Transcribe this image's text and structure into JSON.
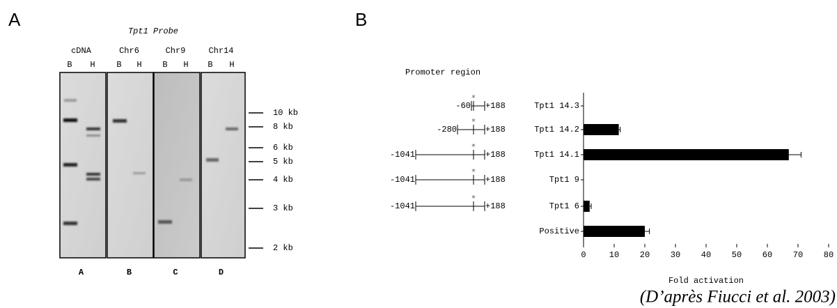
{
  "panel_a": {
    "label": "A",
    "probe": "Tpt1 Probe",
    "lanes": [
      {
        "name": "cDNA",
        "sub": [
          "B",
          "H"
        ],
        "letter": "A"
      },
      {
        "name": "Chr6",
        "sub": [
          "B",
          "H"
        ],
        "letter": "B"
      },
      {
        "name": "Chr9",
        "sub": [
          "B",
          "H"
        ],
        "letter": "C"
      },
      {
        "name": "Chr14",
        "sub": [
          "B",
          "H"
        ],
        "letter": "D"
      }
    ],
    "markers": [
      "10 kb",
      "8 kb",
      "6 kb",
      "5 kb",
      "4 kb",
      "3 kb",
      "2 kb"
    ]
  },
  "panel_b": {
    "label": "B",
    "promoter_title": "Promoter region",
    "constructs": [
      {
        "start": "-60",
        "end": "+188"
      },
      {
        "start": "-280",
        "end": "+188"
      },
      {
        "start": "-1041",
        "end": "+188"
      },
      {
        "start": "-1041",
        "end": "+188"
      },
      {
        "start": "-1041",
        "end": "+188"
      }
    ]
  },
  "chart_data": {
    "type": "hbar",
    "categories": [
      "Tpt1 14.3",
      "Tpt1 14.2",
      "Tpt1 14.1",
      "Tpt1 9",
      "Tpt1 6",
      "Positive"
    ],
    "values": [
      0,
      11.5,
      67,
      0,
      2,
      20
    ],
    "errors": [
      0,
      0.5,
      4,
      0,
      0.5,
      1.5
    ],
    "color": "#000000",
    "xlim": [
      0,
      80
    ],
    "xticks": [
      0,
      10,
      20,
      30,
      40,
      50,
      60,
      70,
      80
    ],
    "xlabel": "Fold activation"
  },
  "caption": "(D’après Fiucci et al. 2003)"
}
